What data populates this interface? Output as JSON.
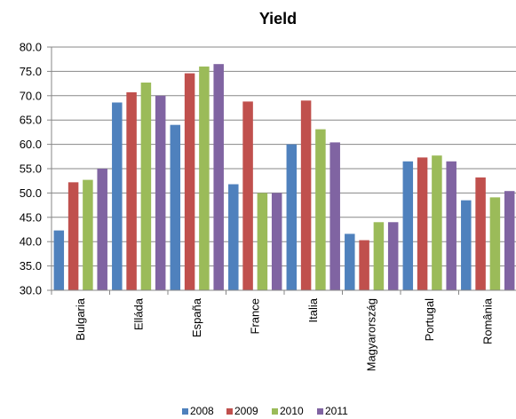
{
  "chart_data": {
    "type": "bar",
    "title": "Yield",
    "xlabel": "",
    "ylabel": "",
    "ylim": [
      30,
      80
    ],
    "yticks": [
      "30.0",
      "35.0",
      "40.0",
      "45.0",
      "50.0",
      "55.0",
      "60.0",
      "65.0",
      "70.0",
      "75.0",
      "80.0"
    ],
    "grid": true,
    "legend_position": "bottom",
    "categories": [
      "Bulgaria",
      "Elláda",
      "España",
      "France",
      "Italia",
      "Magyarország",
      "Portugal",
      "România"
    ],
    "series": [
      {
        "name": "2008",
        "color": "#4F81BD",
        "values": [
          42.3,
          68.6,
          64.0,
          51.8,
          60.0,
          41.6,
          56.5,
          48.5
        ]
      },
      {
        "name": "2009",
        "color": "#C0504D",
        "values": [
          52.2,
          70.7,
          74.6,
          68.8,
          69.0,
          40.3,
          57.3,
          53.2
        ]
      },
      {
        "name": "2010",
        "color": "#9BBB59",
        "values": [
          52.7,
          72.7,
          76.0,
          50.0,
          63.1,
          44.0,
          57.7,
          49.1
        ]
      },
      {
        "name": "2011",
        "color": "#8064A2",
        "values": [
          55.0,
          70.0,
          76.5,
          50.0,
          60.4,
          44.0,
          56.5,
          50.4
        ]
      }
    ]
  }
}
